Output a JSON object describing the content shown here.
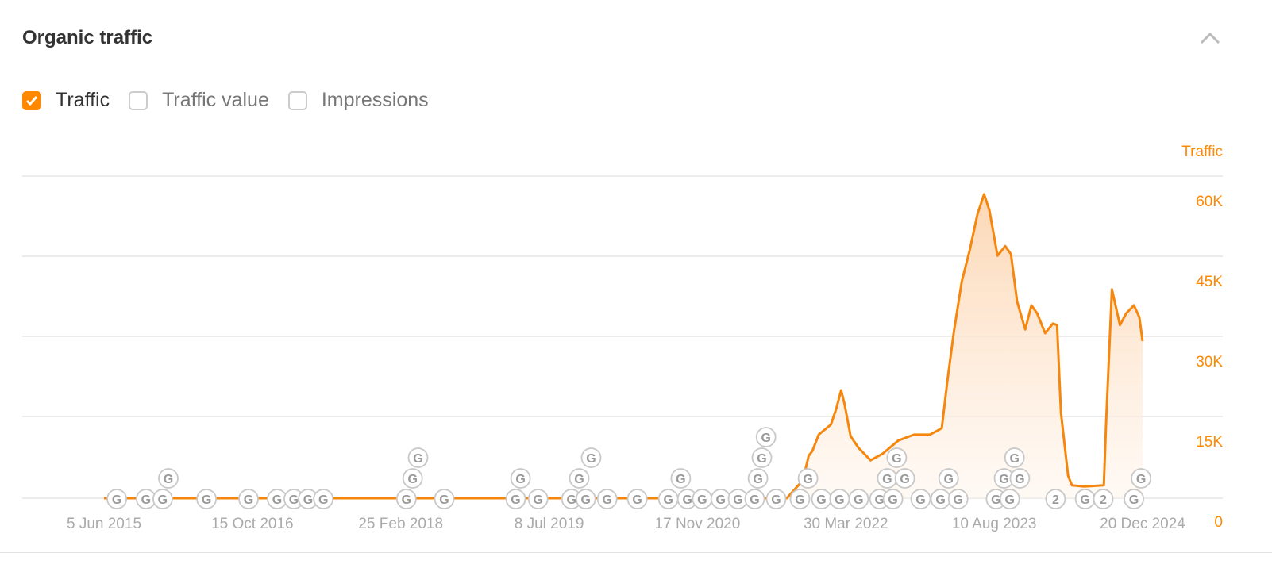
{
  "header": {
    "title": "Organic traffic",
    "collapse_icon": "chevron-up-icon"
  },
  "legend": [
    {
      "label": "Traffic",
      "checked": true
    },
    {
      "label": "Traffic value",
      "checked": false
    },
    {
      "label": "Impressions",
      "checked": false
    }
  ],
  "colors": {
    "accent": "#ff8800",
    "line": "#f5870e",
    "grid": "#e6e6e6",
    "marker": "#9a9a9a"
  },
  "chart_data": {
    "type": "area",
    "ylabel": "Traffic",
    "ylim": [
      0,
      60000
    ],
    "yticks": [
      0,
      15000,
      30000,
      45000,
      60000
    ],
    "ytick_labels": [
      "0",
      "15K",
      "30K",
      "45K",
      "60K"
    ],
    "xlim": [
      "2015-06-05",
      "2024-12-20"
    ],
    "xtick_labels": [
      "5 Jun 2015",
      "15 Oct 2016",
      "25 Feb 2018",
      "8 Jul 2019",
      "17 Nov 2020",
      "30 Mar 2022",
      "10 Aug 2023",
      "20 Dec 2024"
    ],
    "xticks": [
      "2015-06-05",
      "2016-10-15",
      "2018-02-25",
      "2019-07-08",
      "2020-11-17",
      "2022-03-30",
      "2023-08-10",
      "2024-12-20"
    ],
    "grid": true,
    "series": [
      {
        "name": "Traffic",
        "points": [
          [
            "2015-06-05",
            0
          ],
          [
            "2021-09-13",
            0
          ],
          [
            "2021-11-06",
            3400
          ],
          [
            "2021-11-25",
            7900
          ],
          [
            "2021-12-08",
            8900
          ],
          [
            "2021-12-29",
            11900
          ],
          [
            "2022-02-08",
            13800
          ],
          [
            "2022-02-26",
            16800
          ],
          [
            "2022-03-14",
            20200
          ],
          [
            "2022-03-25",
            17800
          ],
          [
            "2022-04-15",
            11600
          ],
          [
            "2022-05-12",
            9400
          ],
          [
            "2022-06-21",
            7100
          ],
          [
            "2022-07-31",
            8300
          ],
          [
            "2022-09-22",
            10800
          ],
          [
            "2022-11-14",
            11900
          ],
          [
            "2023-01-06",
            11900
          ],
          [
            "2023-02-15",
            13100
          ],
          [
            "2023-03-06",
            22000
          ],
          [
            "2023-03-27",
            30900
          ],
          [
            "2023-04-23",
            40500
          ],
          [
            "2023-05-20",
            46500
          ],
          [
            "2023-06-15",
            53200
          ],
          [
            "2023-07-07",
            56900
          ],
          [
            "2023-07-25",
            53900
          ],
          [
            "2023-08-21",
            45400
          ],
          [
            "2023-09-16",
            47200
          ],
          [
            "2023-10-05",
            45700
          ],
          [
            "2023-10-26",
            36800
          ],
          [
            "2023-11-22",
            31600
          ],
          [
            "2023-12-13",
            36100
          ],
          [
            "2024-01-01",
            34600
          ],
          [
            "2024-01-28",
            30900
          ],
          [
            "2024-02-23",
            32700
          ],
          [
            "2024-03-08",
            32400
          ],
          [
            "2024-03-21",
            16000
          ],
          [
            "2024-04-14",
            4200
          ],
          [
            "2024-04-27",
            2400
          ],
          [
            "2024-06-06",
            2200
          ],
          [
            "2024-08-12",
            2400
          ],
          [
            "2024-08-20",
            14600
          ],
          [
            "2024-09-08",
            39100
          ],
          [
            "2024-10-05",
            32400
          ],
          [
            "2024-10-26",
            34600
          ],
          [
            "2024-11-21",
            36100
          ],
          [
            "2024-12-09",
            33900
          ],
          [
            "2024-12-20",
            29400
          ]
        ]
      }
    ],
    "annotations": [
      [
        "2015-07-18",
        "G"
      ],
      [
        "2015-10-24",
        "G"
      ],
      [
        "2015-12-19",
        "G"
      ],
      [
        "2016-01-07",
        "G"
      ],
      [
        "2016-05-14",
        "G"
      ],
      [
        "2016-10-02",
        "G"
      ],
      [
        "2017-01-06",
        "G"
      ],
      [
        "2017-03-03",
        "G"
      ],
      [
        "2017-04-20",
        "G"
      ],
      [
        "2017-06-10",
        "G"
      ],
      [
        "2018-03-16",
        "G"
      ],
      [
        "2018-04-06",
        "G"
      ],
      [
        "2018-04-24",
        "G"
      ],
      [
        "2018-07-21",
        "G"
      ],
      [
        "2019-03-18",
        "G"
      ],
      [
        "2019-04-03",
        "G"
      ],
      [
        "2019-06-01",
        "G"
      ],
      [
        "2019-09-21",
        "G"
      ],
      [
        "2019-10-17",
        "G"
      ],
      [
        "2019-11-08",
        "G"
      ],
      [
        "2019-11-26",
        "G"
      ],
      [
        "2020-01-19",
        "G"
      ],
      [
        "2020-04-29",
        "G"
      ],
      [
        "2020-08-11",
        "G"
      ],
      [
        "2020-09-22",
        "G"
      ],
      [
        "2020-10-14",
        "G"
      ],
      [
        "2020-12-03",
        "G"
      ],
      [
        "2021-02-03",
        "G"
      ],
      [
        "2021-04-02",
        "G"
      ],
      [
        "2021-05-28",
        "G"
      ],
      [
        "2021-06-08",
        "G"
      ],
      [
        "2021-06-21",
        "G"
      ],
      [
        "2021-07-05",
        "G"
      ],
      [
        "2021-08-08",
        "G"
      ],
      [
        "2021-10-27",
        "G"
      ],
      [
        "2021-11-23",
        "G"
      ],
      [
        "2022-01-07",
        "G"
      ],
      [
        "2022-03-09",
        "G"
      ],
      [
        "2022-05-12",
        "G"
      ],
      [
        "2022-07-21",
        "G"
      ],
      [
        "2022-08-16",
        "G"
      ],
      [
        "2022-09-04",
        "G"
      ],
      [
        "2022-09-17",
        "G"
      ],
      [
        "2022-10-14",
        "G"
      ],
      [
        "2022-12-06",
        "G"
      ],
      [
        "2023-02-11",
        "G"
      ],
      [
        "2023-03-10",
        "G"
      ],
      [
        "2023-04-11",
        "G"
      ],
      [
        "2023-08-16",
        "G"
      ],
      [
        "2023-09-12",
        "G"
      ],
      [
        "2023-10-01",
        "G"
      ],
      [
        "2023-10-17",
        "G"
      ],
      [
        "2023-11-04",
        "G"
      ],
      [
        "2024-03-03",
        "2"
      ],
      [
        "2024-06-10",
        "G"
      ],
      [
        "2024-08-10",
        "2"
      ],
      [
        "2024-11-21",
        "G"
      ],
      [
        "2024-12-15",
        "G"
      ]
    ]
  }
}
